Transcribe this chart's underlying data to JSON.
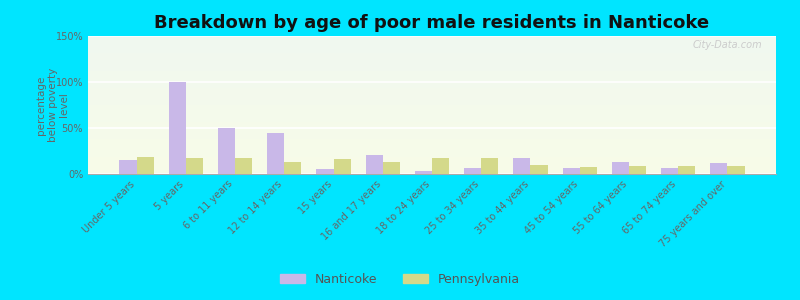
{
  "title": "Breakdown by age of poor male residents in Nanticoke",
  "ylabel": "percentage\nbelow poverty\nlevel",
  "categories": [
    "Under 5 years",
    "5 years",
    "6 to 11 years",
    "12 to 14 years",
    "15 years",
    "16 and 17 years",
    "18 to 24 years",
    "25 to 34 years",
    "35 to 44 years",
    "45 to 54 years",
    "55 to 64 years",
    "65 to 74 years",
    "75 years and over"
  ],
  "nanticoke_values": [
    15,
    100,
    50,
    45,
    5,
    21,
    3,
    7,
    17,
    7,
    13,
    6,
    12
  ],
  "pennsylvania_values": [
    18,
    17,
    17,
    13,
    16,
    13,
    17,
    17,
    10,
    8,
    9,
    9,
    9
  ],
  "nanticoke_color": "#c9b8e8",
  "pennsylvania_color": "#d4d98a",
  "outer_bg": "#00e5ff",
  "plot_bg_top": "#f0f8f0",
  "plot_bg_bottom": "#f8fce8",
  "ylim": [
    0,
    150
  ],
  "yticks": [
    0,
    50,
    100,
    150
  ],
  "ytick_labels": [
    "0%",
    "50%",
    "100%",
    "150%"
  ],
  "bar_width": 0.35,
  "title_fontsize": 13,
  "axis_label_fontsize": 7.5,
  "tick_fontsize": 7,
  "legend_fontsize": 9
}
